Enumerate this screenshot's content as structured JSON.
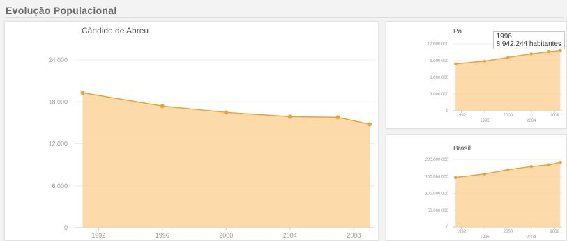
{
  "page": {
    "section_title": "Evolução Populacional"
  },
  "colors": {
    "area": "#fcd49a",
    "line": "#e8a23a",
    "grid": "#ececec",
    "axis": "#c8c8c8"
  },
  "chart_data": [
    {
      "id": "main",
      "type": "area",
      "title": "Cândido de Abreu",
      "x": [
        1991,
        1996,
        2000,
        2004,
        2007,
        2009
      ],
      "series": [
        {
          "values": [
            19300,
            17400,
            16500,
            15900,
            15800,
            14800
          ]
        }
      ],
      "xlim": [
        1990.5,
        2009.3
      ],
      "ylim": [
        0,
        24000
      ],
      "yticks": [
        0,
        6000,
        12000,
        18000,
        24000
      ],
      "ytick_labels": [
        "0",
        "6.000",
        "12.000",
        "18.000",
        "24.000"
      ],
      "xticks": [
        1992,
        1996,
        2000,
        2004,
        2008
      ],
      "xtick_labels": [
        "1992",
        "1996",
        "2000",
        "2004",
        "2008"
      ],
      "grid": true
    },
    {
      "id": "state",
      "type": "area",
      "title": "Pa",
      "x": [
        1991,
        1996,
        2000,
        2004,
        2007,
        2009
      ],
      "series": [
        {
          "values": [
            8400000,
            8900000,
            9560000,
            10200000,
            10600000,
            10800000
          ]
        }
      ],
      "xlim": [
        1990.5,
        2009.3
      ],
      "ylim": [
        0,
        12000000
      ],
      "yticks": [
        0,
        3000000,
        6000000,
        9000000,
        12000000
      ],
      "ytick_labels": [
        "0",
        "3.000.000",
        "6.000.000",
        "9.000.000",
        "12.000.000"
      ],
      "xticks": [
        1992,
        1996,
        2000,
        2004,
        2008
      ],
      "xtick_labels": [
        "1992",
        "1996",
        "2000",
        "2004",
        "2008"
      ],
      "grid": true,
      "tooltip": {
        "year": "1996",
        "value": "8.942.244 habitantes"
      }
    },
    {
      "id": "country",
      "type": "area",
      "title": "Brasil",
      "x": [
        1991,
        1996,
        2000,
        2004,
        2007,
        2009
      ],
      "series": [
        {
          "values": [
            146800000,
            157100000,
            169800000,
            179000000,
            183900000,
            191500000
          ]
        }
      ],
      "xlim": [
        1990.5,
        2009.3
      ],
      "ylim": [
        0,
        200000000
      ],
      "yticks": [
        0,
        50000000,
        100000000,
        150000000,
        200000000
      ],
      "ytick_labels": [
        "0",
        "50.000.000",
        "100.000.000",
        "150.000.000",
        "200.000.000"
      ],
      "xticks": [
        1992,
        1996,
        2000,
        2004,
        2008
      ],
      "xtick_labels": [
        "1992",
        "1996",
        "2000",
        "2004",
        "2008"
      ],
      "grid": true
    }
  ]
}
